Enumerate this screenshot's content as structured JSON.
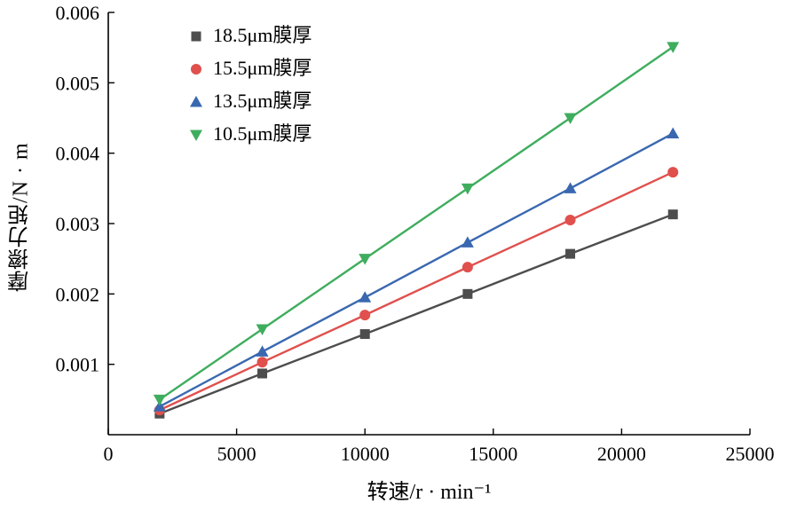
{
  "chart_data": {
    "type": "line",
    "title": "",
    "xlabel": "转速/r · min⁻¹",
    "ylabel": "摩擦力矩/N · m",
    "x": [
      2000,
      6000,
      10000,
      14000,
      18000,
      22000
    ],
    "series": [
      {
        "name": "18.5μm膜厚",
        "marker": "square",
        "color": "#4d4d4d",
        "values": [
          0.0003,
          0.00087,
          0.00143,
          0.002,
          0.00257,
          0.00313
        ]
      },
      {
        "name": "15.5μm膜厚",
        "marker": "circle",
        "color": "#e0504d",
        "values": [
          0.00035,
          0.00103,
          0.0017,
          0.00238,
          0.00305,
          0.00373
        ]
      },
      {
        "name": "13.5μm膜厚",
        "marker": "triangle-up",
        "color": "#3a68b0",
        "values": [
          0.0004,
          0.00118,
          0.00195,
          0.00273,
          0.0035,
          0.00428
        ]
      },
      {
        "name": "10.5μm膜厚",
        "marker": "triangle-down",
        "color": "#3fad5e",
        "values": [
          0.0005,
          0.0015,
          0.0025,
          0.0035,
          0.0045,
          0.00551
        ]
      }
    ],
    "xlim": [
      0,
      25000
    ],
    "ylim": [
      0,
      0.006
    ],
    "x_ticks": [
      0,
      5000,
      10000,
      15000,
      20000,
      25000
    ],
    "x_tick_labels": [
      "0",
      "5000",
      "10000",
      "15000",
      "20000",
      "25000"
    ],
    "y_ticks": [
      0.001,
      0.002,
      0.003,
      0.004,
      0.005,
      0.006
    ],
    "y_tick_labels": [
      "0.001",
      "0.002",
      "0.003",
      "0.004",
      "0.005",
      "0.006"
    ],
    "grid": false,
    "legend_position": "top-left-inside",
    "axis_color": "#000000",
    "text_color": "#000000"
  }
}
